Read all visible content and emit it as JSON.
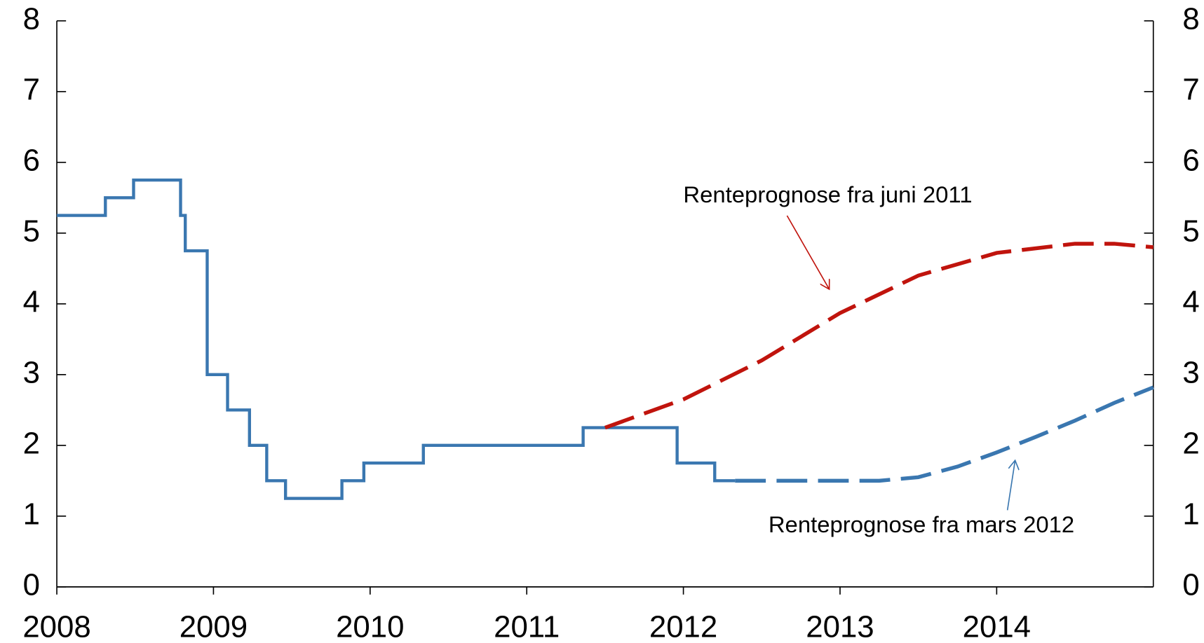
{
  "chart_data": {
    "type": "line",
    "xlim": [
      2008,
      2015
    ],
    "xticks": [
      2008,
      2009,
      2010,
      2011,
      2012,
      2013,
      2014
    ],
    "ylim": [
      0,
      8
    ],
    "yticks": [
      0,
      1,
      2,
      3,
      4,
      5,
      6,
      7,
      8
    ],
    "y2lim": [
      0,
      8
    ],
    "y2ticks": [
      0,
      1,
      2,
      3,
      4,
      5,
      6,
      7,
      8
    ],
    "series": [
      {
        "color": "#3a77b0",
        "step": true,
        "dashed": false,
        "x": [
          2008.0,
          2008.31,
          2008.49,
          2008.79,
          2008.82,
          2008.96,
          2009.09,
          2009.23,
          2009.34,
          2009.46,
          2009.82,
          2009.96,
          2010.34,
          2011.36,
          2011.96,
          2012.2,
          2012.33
        ],
        "values": [
          5.25,
          5.5,
          5.75,
          5.25,
          4.75,
          3.0,
          2.5,
          2.0,
          1.5,
          1.25,
          1.5,
          1.75,
          2.0,
          2.25,
          1.75,
          1.5,
          1.5
        ]
      },
      {
        "name": "Renteprognose fra juni 2011",
        "color": "#c0140d",
        "step": false,
        "dashed": true,
        "x": [
          2011.5,
          2012.0,
          2012.5,
          2013.0,
          2013.5,
          2014.0,
          2014.5,
          2014.75,
          2015.0
        ],
        "values": [
          2.25,
          2.65,
          3.2,
          3.87,
          4.4,
          4.72,
          4.85,
          4.85,
          4.8
        ]
      },
      {
        "name": "Renteprognose fra mars 2012",
        "color": "#3a77b0",
        "step": false,
        "dashed": true,
        "x": [
          2012.33,
          2013.0,
          2013.25,
          2013.5,
          2013.75,
          2014.0,
          2014.25,
          2014.5,
          2014.75,
          2015.0
        ],
        "values": [
          1.5,
          1.5,
          1.5,
          1.55,
          1.7,
          1.9,
          2.12,
          2.35,
          2.6,
          2.82
        ]
      }
    ]
  }
}
